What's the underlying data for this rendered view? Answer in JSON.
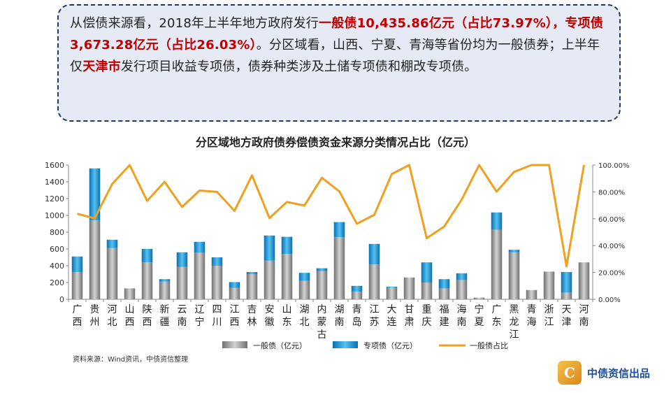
{
  "summary": {
    "seg1": "从偿债来源看，2018年上半年地方政府发行",
    "seg2": "一般债10,435.86亿元（占比73.97%），专项债3,673.28亿元（占比26.03%）",
    "seg3": "。分区域看，山西、宁夏、青海等省份均为一般债券；上半年仅",
    "seg4": "天津市",
    "seg5": "发行项目收益专项债，债券种类涉及土储专项债和棚改专项债。"
  },
  "footer": {
    "source": "资料来源：Wind资讯，中债资信整理",
    "brand_text": "中债资信出品",
    "brand_mark": "C"
  },
  "colors": {
    "general": "#8c8c8c",
    "special": "#1a9ad6",
    "ratio": "#f0a01e",
    "highlight": "#c00000",
    "box_border": "#1f3864"
  },
  "chart_data": {
    "type": "bar",
    "stacked": true,
    "title": "分区域地方政府债券偿债资金来源分类情况占比（亿元）",
    "categories": [
      "广西",
      "贵州",
      "河北",
      "山西",
      "陕西",
      "新疆",
      "云南",
      "辽宁",
      "四川",
      "江西",
      "吉林",
      "安徽",
      "山东",
      "湖北",
      "内蒙古",
      "湖南",
      "青岛",
      "江苏",
      "大连",
      "甘肃",
      "重庆",
      "福建",
      "海南",
      "宁夏",
      "广东",
      "黑龙江",
      "青海",
      "浙江",
      "天津",
      "河南"
    ],
    "series": [
      {
        "name": "一般债（亿元）",
        "type": "bar",
        "axis": "left",
        "values": [
          325,
          940,
          610,
          130,
          440,
          210,
          385,
          555,
          400,
          135,
          300,
          460,
          540,
          220,
          335,
          740,
          90,
          415,
          140,
          260,
          200,
          130,
          230,
          20,
          830,
          560,
          110,
          330,
          80,
          440
        ]
      },
      {
        "name": "专项债（亿元）",
        "type": "bar",
        "axis": "left",
        "values": [
          185,
          620,
          100,
          0,
          160,
          30,
          175,
          130,
          100,
          70,
          25,
          300,
          205,
          95,
          35,
          180,
          70,
          245,
          10,
          0,
          240,
          110,
          80,
          0,
          205,
          30,
          0,
          0,
          245,
          0
        ]
      },
      {
        "name": "一般债占比",
        "type": "line",
        "axis": "right",
        "values": [
          63.7,
          60.3,
          85.9,
          100,
          73.3,
          87.5,
          68.8,
          81.0,
          80.0,
          65.9,
          92.3,
          60.5,
          72.5,
          69.8,
          90.5,
          80.4,
          56.3,
          62.9,
          93.3,
          100,
          45.5,
          54.2,
          74.2,
          100,
          80.2,
          94.9,
          100,
          100,
          24.6,
          100
        ]
      }
    ],
    "y_left": {
      "min": 0,
      "max": 1600,
      "ticks": [
        "0",
        "200",
        "400",
        "600",
        "800",
        "1000",
        "1200",
        "1400",
        "1600"
      ]
    },
    "y_right": {
      "min": 0,
      "max": 100,
      "ticks": [
        "0.00%",
        "20.00%",
        "40.00%",
        "60.00%",
        "80.00%",
        "100.00%"
      ]
    },
    "grid": false,
    "legend_position": "bottom"
  }
}
